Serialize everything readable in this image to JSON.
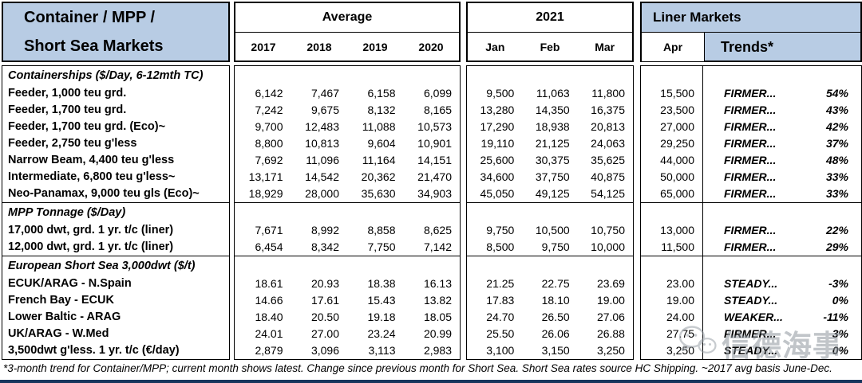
{
  "header": {
    "title_line1": "Container / MPP /",
    "title_line2": "Short Sea Markets",
    "average_label": "Average",
    "avg_years": [
      "2017",
      "2018",
      "2019",
      "2020"
    ],
    "year_2021_label": "2021",
    "months": [
      "Jan",
      "Feb",
      "Mar"
    ],
    "liner_label": "Liner Markets",
    "apr_label": "Apr",
    "trends_label": "Trends*"
  },
  "sections": [
    {
      "title": "Containerships ($/Day, 6-12mth TC)",
      "rows": [
        {
          "label": "Feeder, 1,000 teu grd.",
          "avg": [
            "6,142",
            "7,467",
            "6,158",
            "6,099"
          ],
          "m2021": [
            "9,500",
            "11,063",
            "11,800"
          ],
          "apr": "15,500",
          "trend": "FIRMER...",
          "pct": "54%"
        },
        {
          "label": "Feeder, 1,700 teu grd.",
          "avg": [
            "7,242",
            "9,675",
            "8,132",
            "8,165"
          ],
          "m2021": [
            "13,280",
            "14,350",
            "16,375"
          ],
          "apr": "23,500",
          "trend": "FIRMER...",
          "pct": "43%"
        },
        {
          "label": "Feeder, 1,700 teu grd. (Eco)~",
          "avg": [
            "9,700",
            "12,483",
            "11,088",
            "10,573"
          ],
          "m2021": [
            "17,290",
            "18,938",
            "20,813"
          ],
          "apr": "27,000",
          "trend": "FIRMER...",
          "pct": "42%"
        },
        {
          "label": "Feeder, 2,750 teu g'less",
          "avg": [
            "8,800",
            "10,813",
            "9,604",
            "10,901"
          ],
          "m2021": [
            "19,110",
            "21,125",
            "24,063"
          ],
          "apr": "29,250",
          "trend": "FIRMER...",
          "pct": "37%"
        },
        {
          "label": "Narrow Beam, 4,400 teu g'less",
          "avg": [
            "7,692",
            "11,096",
            "11,164",
            "14,151"
          ],
          "m2021": [
            "25,600",
            "30,375",
            "35,625"
          ],
          "apr": "44,000",
          "trend": "FIRMER...",
          "pct": "48%"
        },
        {
          "label": "Intermediate, 6,800 teu g'less~",
          "avg": [
            "13,171",
            "14,542",
            "20,362",
            "21,470"
          ],
          "m2021": [
            "34,600",
            "37,750",
            "40,875"
          ],
          "apr": "50,000",
          "trend": "FIRMER...",
          "pct": "33%"
        },
        {
          "label": "Neo-Panamax, 9,000 teu gls (Eco)~",
          "avg": [
            "18,929",
            "28,000",
            "35,630",
            "34,903"
          ],
          "m2021": [
            "45,050",
            "49,125",
            "54,125"
          ],
          "apr": "65,000",
          "trend": "FIRMER...",
          "pct": "33%"
        }
      ]
    },
    {
      "title": "MPP Tonnage  ($/Day)",
      "rows": [
        {
          "label": "17,000 dwt, grd. 1 yr. t/c (liner)",
          "avg": [
            "7,671",
            "8,992",
            "8,858",
            "8,625"
          ],
          "m2021": [
            "9,750",
            "10,500",
            "10,750"
          ],
          "apr": "13,000",
          "trend": "FIRMER...",
          "pct": "22%"
        },
        {
          "label": "12,000 dwt, grd. 1 yr. t/c (liner)",
          "avg": [
            "6,454",
            "8,342",
            "7,750",
            "7,142"
          ],
          "m2021": [
            "8,500",
            "9,750",
            "10,000"
          ],
          "apr": "11,500",
          "trend": "FIRMER...",
          "pct": "29%"
        }
      ]
    },
    {
      "title": "European Short Sea 3,000dwt ($/t)",
      "rows": [
        {
          "label": "ECUK/ARAG - N.Spain",
          "avg": [
            "18.61",
            "20.93",
            "18.38",
            "16.13"
          ],
          "m2021": [
            "21.25",
            "22.75",
            "23.69"
          ],
          "apr": "23.00",
          "trend": "STEADY...",
          "pct": "-3%"
        },
        {
          "label": "French Bay - ECUK",
          "avg": [
            "14.66",
            "17.61",
            "15.43",
            "13.82"
          ],
          "m2021": [
            "17.83",
            "18.10",
            "19.00"
          ],
          "apr": "19.00",
          "trend": "STEADY...",
          "pct": "0%"
        },
        {
          "label": "Lower Baltic - ARAG",
          "avg": [
            "18.40",
            "20.50",
            "19.18",
            "18.05"
          ],
          "m2021": [
            "24.70",
            "26.50",
            "27.06"
          ],
          "apr": "24.00",
          "trend": "WEAKER...",
          "pct": "-11%"
        },
        {
          "label": "UK/ARAG - W.Med",
          "avg": [
            "24.01",
            "27.00",
            "23.24",
            "20.99"
          ],
          "m2021": [
            "25.50",
            "26.06",
            "26.88"
          ],
          "apr": "27.75",
          "trend": "FIRMER...",
          "pct": "3%"
        },
        {
          "label": "3,500dwt g'less. 1 yr. t/c (€/day)",
          "avg": [
            "2,879",
            "3,096",
            "3,113",
            "2,983"
          ],
          "m2021": [
            "3,100",
            "3,150",
            "3,250"
          ],
          "apr": "3,250",
          "trend": "STEADY...",
          "pct": "0%"
        }
      ]
    }
  ],
  "footer": "*3-month trend for Container/MPP; current month shows latest. Change since previous month for Short Sea. Short Sea rates source HC Shipping.  ~2017 avg basis June-Dec.",
  "watermark": {
    "text": "信德海事"
  },
  "colors": {
    "header_blue": "#B8CCE4",
    "border": "#000000",
    "bottom_bar": "#17365D",
    "watermark_gray": "#8F979E"
  }
}
